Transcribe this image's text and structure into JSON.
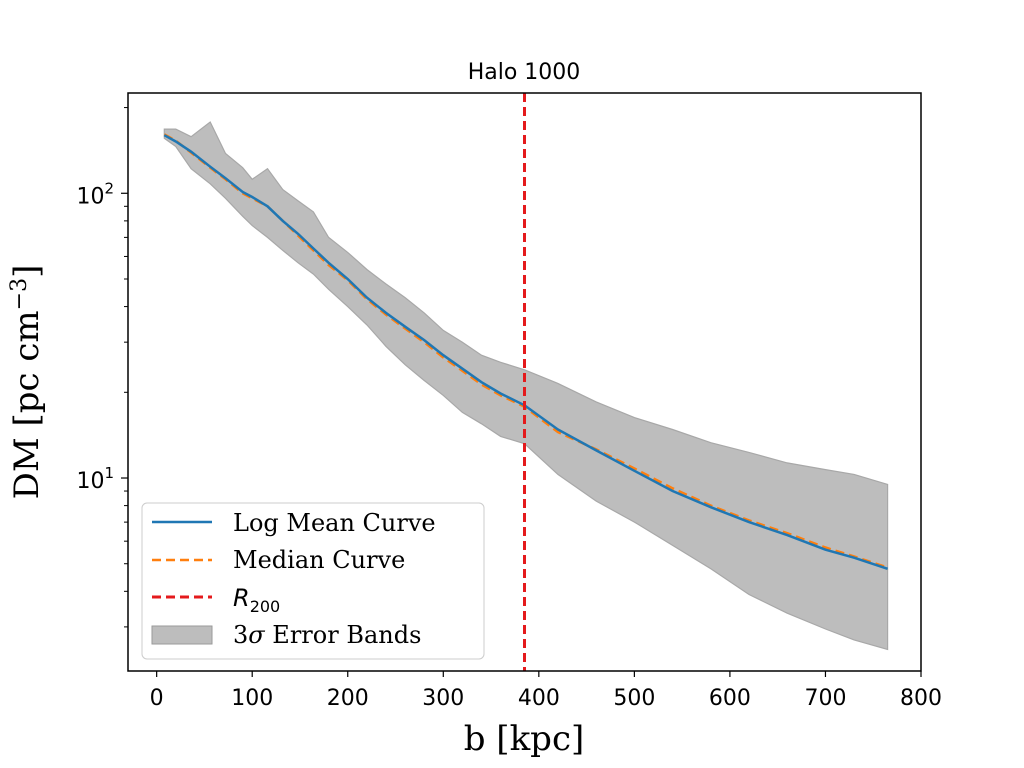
{
  "chart_data": {
    "type": "line",
    "title": "Halo 1000",
    "xlabel": "b [kpc]",
    "ylabel_parts": {
      "base": "DM [pc cm",
      "sup": "−3",
      "end": "]"
    },
    "xlim": [
      -30,
      800
    ],
    "ylim": [
      2.1,
      225
    ],
    "yscale": "log",
    "xticks": [
      0,
      100,
      200,
      300,
      400,
      500,
      600,
      700,
      800
    ],
    "xtick_labels": [
      "0",
      "100",
      "200",
      "300",
      "400",
      "500",
      "600",
      "700",
      "800"
    ],
    "ytick_major": [
      10,
      100
    ],
    "ytick_labels": [
      {
        "base": "10",
        "exp": "1"
      },
      {
        "base": "10",
        "exp": "2"
      }
    ],
    "ytick_minor": [
      3,
      4,
      5,
      6,
      7,
      8,
      9,
      20,
      30,
      40,
      50,
      60,
      70,
      80,
      90,
      200
    ],
    "grid": false,
    "legend_placement": "lower-left",
    "x": [
      8,
      20,
      36,
      56,
      72,
      90,
      100,
      116,
      132,
      148,
      164,
      180,
      200,
      220,
      240,
      260,
      280,
      300,
      320,
      340,
      360,
      385,
      420,
      460,
      500,
      540,
      580,
      620,
      660,
      700,
      730,
      765
    ],
    "series": [
      {
        "name": "Log Mean Curve",
        "color": "#1f77b4",
        "style": "solid",
        "values": [
          160,
          152,
          140,
          124,
          113,
          101,
          97,
          90,
          80,
          72,
          64,
          57,
          50,
          43,
          38,
          34,
          30.5,
          27,
          24.2,
          21.7,
          19.8,
          18.0,
          14.8,
          12.5,
          10.6,
          9.0,
          7.9,
          7.0,
          6.3,
          5.6,
          5.25,
          4.8
        ]
      },
      {
        "name": "Median Curve",
        "color": "#ff7f0e",
        "style": "dashed",
        "values": [
          161,
          153,
          139,
          123,
          112,
          100,
          96,
          90,
          80,
          71,
          63,
          56,
          49.5,
          42.5,
          37.5,
          33.5,
          30,
          26.5,
          23.8,
          21.3,
          19.5,
          17.8,
          14.5,
          12.6,
          10.8,
          9.2,
          8.0,
          7.1,
          6.4,
          5.7,
          5.3,
          4.85
        ]
      },
      {
        "name": "3σ Error Bands",
        "color": "#bdbdbd",
        "style": "band",
        "upper": [
          168,
          168,
          158,
          178,
          138,
          123,
          112,
          122,
          103,
          94,
          86,
          70,
          62,
          54,
          48,
          43,
          38,
          33,
          30,
          27,
          25.5,
          24,
          21.5,
          18.5,
          16.3,
          14.8,
          13.3,
          12.3,
          11.3,
          10.7,
          10.3,
          9.5
        ],
        "lower": [
          156,
          146,
          122,
          108,
          96,
          83,
          77,
          70,
          63,
          57,
          52,
          46,
          40,
          34.5,
          29,
          25,
          22,
          19.5,
          17,
          15.5,
          14,
          13.2,
          10.3,
          8.3,
          7,
          5.8,
          4.8,
          3.9,
          3.35,
          2.95,
          2.7,
          2.5
        ]
      }
    ],
    "vline": {
      "name": "R",
      "sub": "200",
      "x": 385,
      "color": "#e41a1c",
      "style": "dashed"
    },
    "legend": [
      {
        "label": "Log Mean Curve",
        "kind": "solid",
        "color": "#1f77b4"
      },
      {
        "label": "Median Curve",
        "kind": "dashed",
        "color": "#ff7f0e"
      },
      {
        "label_parts": {
          "base": "R",
          "sub": "200"
        },
        "kind": "dashed",
        "color": "#e41a1c"
      },
      {
        "label_parts": {
          "pre": "3",
          "sym": "σ",
          "post": " Error Bands"
        },
        "kind": "patch",
        "color": "#bdbdbd"
      }
    ]
  }
}
